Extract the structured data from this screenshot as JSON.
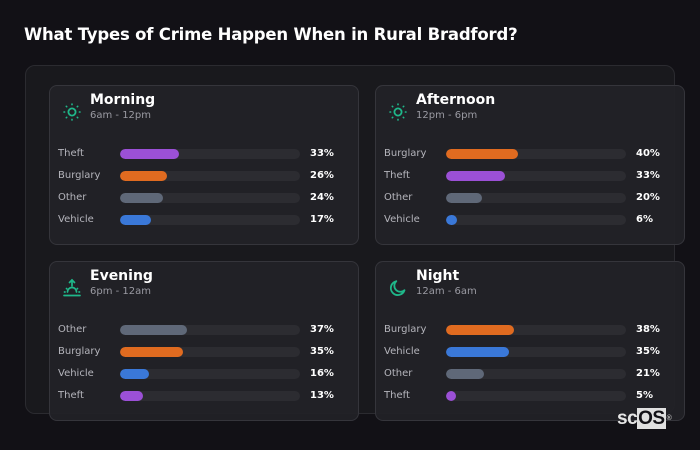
{
  "header": {
    "title": "What Types of Crime Happen When in Rural Bradford?"
  },
  "colors": {
    "Theft": "#9b50d6",
    "Burglary": "#e06b20",
    "Other": "#5f6878",
    "Vehicle": "#3a78d8",
    "icon_accent": "#1fb88a"
  },
  "cards": [
    {
      "title": "Morning",
      "subtitle": "6am - 12pm",
      "icon": "sun-icon",
      "rows": [
        {
          "label": "Theft",
          "value": 33,
          "pct": "33%"
        },
        {
          "label": "Burglary",
          "value": 26,
          "pct": "26%"
        },
        {
          "label": "Other",
          "value": 24,
          "pct": "24%"
        },
        {
          "label": "Vehicle",
          "value": 17,
          "pct": "17%"
        }
      ]
    },
    {
      "title": "Afternoon",
      "subtitle": "12pm - 6pm",
      "icon": "sun-icon",
      "rows": [
        {
          "label": "Burglary",
          "value": 40,
          "pct": "40%"
        },
        {
          "label": "Theft",
          "value": 33,
          "pct": "33%"
        },
        {
          "label": "Other",
          "value": 20,
          "pct": "20%"
        },
        {
          "label": "Vehicle",
          "value": 6,
          "pct": "6%"
        }
      ]
    },
    {
      "title": "Evening",
      "subtitle": "6pm - 12am",
      "icon": "sunset-icon",
      "rows": [
        {
          "label": "Other",
          "value": 37,
          "pct": "37%"
        },
        {
          "label": "Burglary",
          "value": 35,
          "pct": "35%"
        },
        {
          "label": "Vehicle",
          "value": 16,
          "pct": "16%"
        },
        {
          "label": "Theft",
          "value": 13,
          "pct": "13%"
        }
      ]
    },
    {
      "title": "Night",
      "subtitle": "12am - 6am",
      "icon": "moon-icon",
      "rows": [
        {
          "label": "Burglary",
          "value": 38,
          "pct": "38%"
        },
        {
          "label": "Vehicle",
          "value": 35,
          "pct": "35%"
        },
        {
          "label": "Other",
          "value": 21,
          "pct": "21%"
        },
        {
          "label": "Theft",
          "value": 5,
          "pct": "5%"
        }
      ]
    }
  ],
  "logo": {
    "prefix": "sc",
    "suffix": "OS",
    "mark": "®"
  },
  "chart_data": {
    "type": "bar",
    "title": "What Types of Crime Happen When in Rural Bradford?",
    "orientation": "horizontal",
    "xlim": [
      0,
      100
    ],
    "unit": "%",
    "panels": [
      {
        "name": "Morning (6am - 12pm)",
        "categories": [
          "Theft",
          "Burglary",
          "Other",
          "Vehicle"
        ],
        "values": [
          33,
          26,
          24,
          17
        ]
      },
      {
        "name": "Afternoon (12pm - 6pm)",
        "categories": [
          "Burglary",
          "Theft",
          "Other",
          "Vehicle"
        ],
        "values": [
          40,
          33,
          20,
          6
        ]
      },
      {
        "name": "Evening (6pm - 12am)",
        "categories": [
          "Other",
          "Burglary",
          "Vehicle",
          "Theft"
        ],
        "values": [
          37,
          35,
          16,
          13
        ]
      },
      {
        "name": "Night (12am - 6am)",
        "categories": [
          "Burglary",
          "Vehicle",
          "Other",
          "Theft"
        ],
        "values": [
          38,
          35,
          21,
          5
        ]
      }
    ]
  }
}
